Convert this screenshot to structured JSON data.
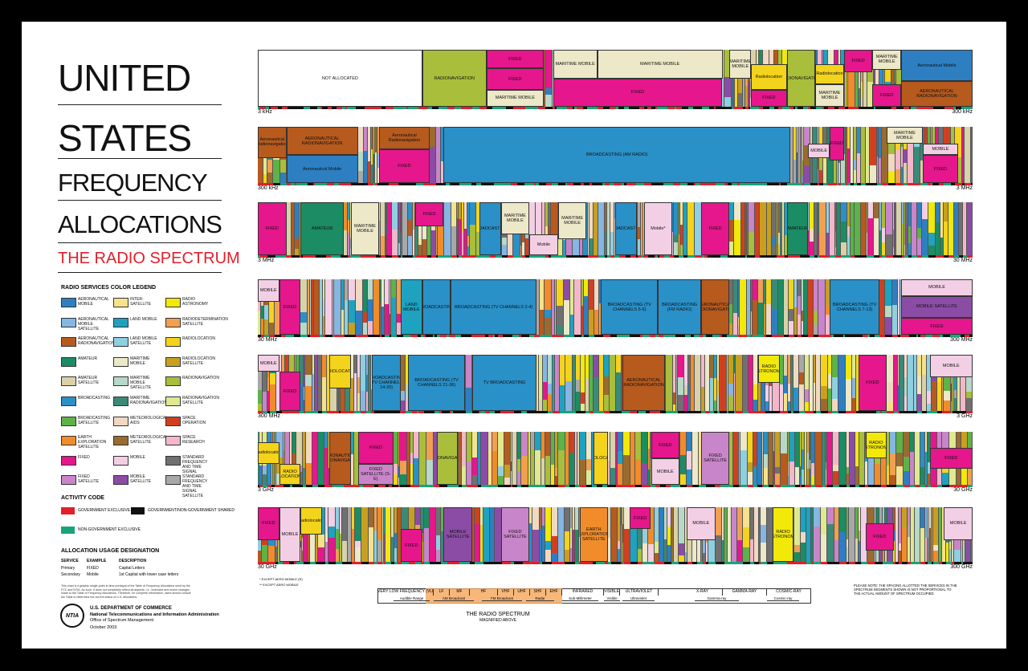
{
  "title": {
    "line1": "UNITED",
    "line2": "STATES",
    "line3": "FREQUENCY",
    "line4": "ALLOCATIONS",
    "subtitle": "THE RADIO SPECTRUM"
  },
  "legend": {
    "heading": "RADIO SERVICES COLOR LEGEND",
    "items": [
      {
        "label": "AERONAUTICAL MOBILE",
        "color": "#2d7fc1"
      },
      {
        "label": "AERONAUTICAL MOBILE SATELLITE",
        "color": "#86b6e2"
      },
      {
        "label": "AERONAUTICAL RADIONAVIGATION",
        "color": "#b65a1e"
      },
      {
        "label": "AMATEUR",
        "color": "#1b8c63"
      },
      {
        "label": "AMATEUR SATELLITE",
        "color": "#d9d2a8"
      },
      {
        "label": "BROADCASTING",
        "color": "#2a90c8"
      },
      {
        "label": "BROADCASTING SATELLITE",
        "color": "#5db348"
      },
      {
        "label": "EARTH EXPLORATION SATELLITE",
        "color": "#f08c2a"
      },
      {
        "label": "FIXED",
        "color": "#e6168c"
      },
      {
        "label": "FIXED SATELLITE",
        "color": "#c985c9"
      },
      {
        "label": "INTER-SATELLITE",
        "color": "#f5e28a"
      },
      {
        "label": "LAND MOBILE",
        "color": "#1ea2c0"
      },
      {
        "label": "LAND MOBILE SATELLITE",
        "color": "#8ecfe0"
      },
      {
        "label": "MARITIME MOBILE",
        "color": "#ece8c8"
      },
      {
        "label": "MARITIME MOBILE SATELLITE",
        "color": "#b8d8c8"
      },
      {
        "label": "MARITIME RADIONAVIGATION",
        "color": "#3a8a78"
      },
      {
        "label": "METEOROLOGICAL AIDS",
        "color": "#f2d8c0"
      },
      {
        "label": "METEOROLOGICAL SATELLITE",
        "color": "#9a6b2e"
      },
      {
        "label": "MOBILE",
        "color": "#f3cfe5"
      },
      {
        "label": "MOBILE SATELLITE",
        "color": "#8b4ca6"
      },
      {
        "label": "RADIO ASTRONOMY",
        "color": "#f2e80a"
      },
      {
        "label": "RADIODETERMINATION SATELLITE",
        "color": "#f0a050"
      },
      {
        "label": "RADIOLOCATION",
        "color": "#f4d31c"
      },
      {
        "label": "RADIOLOCATION SATELLITE",
        "color": "#c8a020"
      },
      {
        "label": "RADIONAVIGATION",
        "color": "#a9be3a"
      },
      {
        "label": "RADIONAVIGATION SATELLITE",
        "color": "#e0e890"
      },
      {
        "label": "SPACE OPERATION",
        "color": "#d04020"
      },
      {
        "label": "SPACE RESEARCH",
        "color": "#f3b7c9"
      },
      {
        "label": "STANDARD FREQUENCY AND TIME SIGNAL",
        "color": "#707070"
      },
      {
        "label": "STANDARD FREQUENCY AND TIME SIGNAL SATELLITE",
        "color": "#a8a8a8"
      }
    ]
  },
  "activity_code": {
    "heading": "ACTIVITY CODE",
    "items": [
      {
        "label": "GOVERNMENT EXCLUSIVE",
        "color": "#e0202a"
      },
      {
        "label": "GOVERNMENT/NON-GOVERNMENT SHARED",
        "color": "#111111"
      },
      {
        "label": "NON-GOVERNMENT EXCLUSIVE",
        "color": "#1aa37a"
      }
    ]
  },
  "usage": {
    "heading": "ALLOCATION USAGE DESIGNATION",
    "columns": [
      "SERVICE",
      "EXAMPLE",
      "DESCRIPTION"
    ],
    "rows": [
      [
        "Primary",
        "FIXED",
        "Capital Letters"
      ],
      [
        "Secondary",
        "Mobile",
        "1st Capital with lower case letters"
      ]
    ]
  },
  "footnote": "This chart is a graphic single-point-in-time portrayal of the Table of Frequency Allocations used by the FCC and NTIA. As such, it does not completely reflect all aspects, i.e., footnotes and recent changes made to the Table of Frequency Allocations. Therefore, for complete information, users should consult the Table to determine the current status of U.S. allocations.",
  "agency": {
    "logo": "NTIA",
    "line1": "U.S. DEPARTMENT OF COMMERCE",
    "line2": "National Telecommunications and Information Administration",
    "line3": "Office of Spectrum Management",
    "date": "October 2003"
  },
  "bands": [
    {
      "start": "3 kHz",
      "end": "300 kHz",
      "blocks": [
        "NOT ALLOCATED",
        "RADIONAVIGATION",
        "FIXED",
        "FIXED",
        "MARITIME MOBILE",
        "MARITIME MOBILE",
        "FIXED",
        "MARITIME MOBILE",
        "MARITIME MOBILE",
        "Radiolocation",
        "FIXED",
        "RADIONAVIGATION",
        "Radiolocation",
        "MARITIME MOBILE",
        "FIXED",
        "MARITIME MOBILE",
        "FIXED",
        "Aeronautical Mobile",
        "AERONAUTICAL RADIONAVIGATION"
      ]
    },
    {
      "start": "300 kHz",
      "end": "3 MHz",
      "blocks": [
        "Aeronautical Radionavigation",
        "AERONAUTICAL RADIONAVIGATION",
        "Aeronautical Mobile",
        "Aeronautical Radionavigation",
        "FIXED",
        "BROADCASTING (AM RADIO)",
        "MOBILE",
        "FIXED",
        "MARITIME MOBILE",
        "MOBILE",
        "FIXED"
      ]
    },
    {
      "start": "3 MHz",
      "end": "30 MHz",
      "blocks": [
        "FIXED",
        "AMATEUR",
        "MARITIME MOBILE",
        "FIXED",
        "BROADCASTING",
        "MARITIME MOBILE",
        "Mobile",
        "MARITIME MOBILE",
        "BROADCASTING",
        "Mobile*",
        "FIXED",
        "AMATEUR"
      ]
    },
    {
      "start": "30 MHz",
      "end": "300 MHz",
      "blocks": [
        "MOBILE",
        "FIXED",
        "LAND MOBILE",
        "BROADCASTING",
        "BROADCASTING (TV CHANNELS 2-4)",
        "BROADCASTING (TV CHANNELS 5-6)",
        "BROADCASTING (FM RADIO)",
        "AERONAUTICAL RADIONAVIGATION",
        "BROADCASTING (TV CHANNELS 7-13)",
        "MOBILE",
        "MOBILE SATELLITE",
        "FIXED"
      ]
    },
    {
      "start": "300 MHz",
      "end": "3 GHz",
      "blocks": [
        "MOBILE",
        "FIXED",
        "RADIOLOCATION",
        "BROADCASTING (TV CHANNELS 14-20)",
        "BROADCASTING (TV CHANNELS 21-36)",
        "TV BROADCASTING",
        "AERONAUTICAL RADIONAVIGATION",
        "RADIO ASTRONOMY",
        "FIXED",
        "MOBILE"
      ]
    },
    {
      "start": "3 GHz",
      "end": "30 GHz",
      "blocks": [
        "Radiolocation",
        "AERONAUTICAL RADIONAVIGATION",
        "RADIO LOCATION",
        "FIXED",
        "FIXED SATELLITE (S-E)",
        "RADIONAVIGATION",
        "RADIOLOCATION",
        "FIXED",
        "MOBILE",
        "FIXED SATELLITE",
        "RADIO ASTRONOMY",
        "FIXED"
      ]
    },
    {
      "start": "30 GHz",
      "end": "300 GHz",
      "blocks": [
        "FIXED",
        "MOBILE",
        "Radiolocation",
        "FIXED",
        "MOBILE SATELLITE",
        "FIXED SATELLITE",
        "EARTH EXPLORATION SATELLITE",
        "FIXED",
        "MOBILE",
        "RADIO ASTRONOMY",
        "FIXED",
        "MOBILE"
      ]
    }
  ],
  "notes": [
    "* EXCEPT AERO MOBILE (R)",
    "** EXCEPT AERO MOBILE"
  ],
  "spectrum": {
    "title": "THE RADIO SPECTRUM",
    "subtitle": "MAGNIFIED ABOVE",
    "bands": [
      "VERY LOW FREQUENCY (VLF)",
      "LF",
      "MF",
      "HF",
      "VHF",
      "UHF",
      "SHF",
      "EHF",
      "INFRARED",
      "VISIBLE",
      "ULTRAVIOLET",
      "X-RAY",
      "GAMMA-RAY",
      "COSMIC-RAY"
    ],
    "uses": [
      "Audible Range",
      "AM Broadcast",
      "FM Broadcast",
      "Radar",
      "Sub-Millimeter",
      "Visible",
      "Ultraviolet",
      "Gamma-ray",
      "Cosmic-ray"
    ]
  },
  "note": "PLEASE NOTE: THE SPACING ALLOTTED THE SERVICES IN THE SPECTRUM SEGMENTS SHOWN IS NOT PROPORTIONAL TO THE ACTUAL AMOUNT OF SPECTRUM OCCUPIED."
}
